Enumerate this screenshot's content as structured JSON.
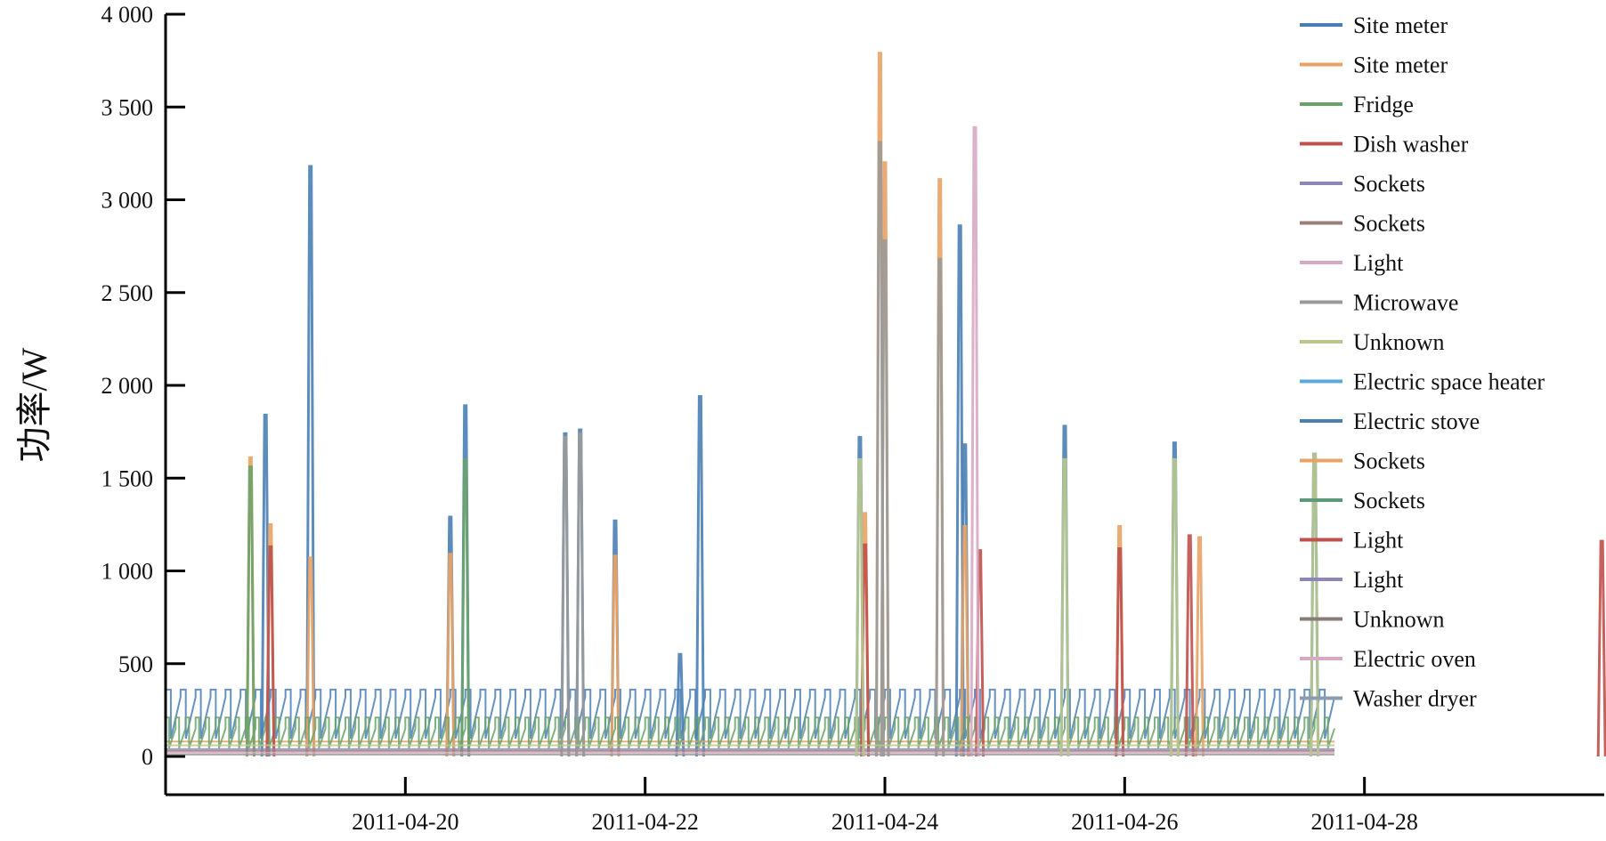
{
  "chart_data": {
    "type": "line",
    "title": "",
    "xlabel": "",
    "ylabel": "功率/W",
    "x_range": [
      "2011-04-18",
      "2011-04-30"
    ],
    "x_ticks": [
      "2011-04-20",
      "2011-04-22",
      "2011-04-24",
      "2011-04-26",
      "2011-04-28"
    ],
    "ylim": [
      0,
      4000
    ],
    "y_ticks": [
      0,
      500,
      1000,
      1500,
      2000,
      2500,
      3000,
      3500,
      4000
    ],
    "y_tick_labels": [
      "0",
      "500",
      "1 000",
      "1 500",
      "2 000",
      "2 500",
      "3 000",
      "3 500",
      "4 000"
    ],
    "grid": false,
    "legend_position": "top-right",
    "series": [
      {
        "name": "Site meter",
        "color": "#4a7fb5",
        "base": 320,
        "period_h": 3,
        "peaks": [
          [
            "2011-04-18T20:00",
            1840
          ],
          [
            "2011-04-19T05:00",
            3180
          ],
          [
            "2011-04-20T09:00",
            1290
          ],
          [
            "2011-04-20T12:00",
            1890
          ],
          [
            "2011-04-21T08:00",
            1740
          ],
          [
            "2011-04-21T11:00",
            1760
          ],
          [
            "2011-04-21T18:00",
            1270
          ],
          [
            "2011-04-22T07:00",
            550
          ],
          [
            "2011-04-22T11:00",
            1940
          ],
          [
            "2011-04-23T19:00",
            1720
          ],
          [
            "2011-04-24T16:00",
            1680
          ],
          [
            "2011-04-24T15:00",
            2860
          ],
          [
            "2011-04-25T12:00",
            1780
          ],
          [
            "2011-04-26T10:00",
            1690
          ],
          [
            "2011-04-27T14:00",
            1630
          ]
        ]
      },
      {
        "name": "Site meter",
        "color": "#e8a265",
        "base": 80,
        "period_h": 0,
        "peaks": [
          [
            "2011-04-18T17:00",
            1610
          ],
          [
            "2011-04-18T21:00",
            1250
          ],
          [
            "2011-04-19T05:00",
            1070
          ],
          [
            "2011-04-20T09:00",
            1090
          ],
          [
            "2011-04-21T18:00",
            1080
          ],
          [
            "2011-04-23T20:00",
            1310
          ],
          [
            "2011-04-23T23:00",
            3790
          ],
          [
            "2011-04-24T00:00",
            3200
          ],
          [
            "2011-04-24T11:00",
            3110
          ],
          [
            "2011-04-24T16:00",
            1240
          ],
          [
            "2011-04-25T23:00",
            1240
          ],
          [
            "2011-04-26T15:00",
            1180
          ]
        ]
      },
      {
        "name": "Fridge",
        "color": "#6aa36a",
        "base": 150,
        "period_h": 2,
        "peaks": [
          [
            "2011-04-18T17:00",
            1560
          ],
          [
            "2011-04-20T12:00",
            1600
          ]
        ]
      },
      {
        "name": "Dish washer",
        "color": "#c0504d",
        "base": 0,
        "period_h": 0,
        "peaks": [
          [
            "2011-04-18T21:00",
            1130
          ],
          [
            "2011-04-23T20:00",
            1140
          ],
          [
            "2011-04-24T19:00",
            1110
          ],
          [
            "2011-04-25T23:00",
            1120
          ],
          [
            "2011-04-26T13:00",
            1190
          ],
          [
            "2011-04-29T23:30",
            1160
          ]
        ]
      },
      {
        "name": "Sockets",
        "color": "#8e86b8",
        "base": 40,
        "period_h": 0,
        "peaks": []
      },
      {
        "name": "Sockets",
        "color": "#9a7f7a",
        "base": 30,
        "period_h": 0,
        "peaks": []
      },
      {
        "name": "Light",
        "color": "#d8a9c4",
        "base": 20,
        "period_h": 0,
        "peaks": [
          [
            "2011-04-24T18:00",
            3390
          ]
        ]
      },
      {
        "name": "Microwave",
        "color": "#9a9a9a",
        "base": 10,
        "period_h": 0,
        "peaks": [
          [
            "2011-04-23T23:00",
            3310
          ],
          [
            "2011-04-24T00:00",
            2780
          ],
          [
            "2011-04-24T11:00",
            2680
          ],
          [
            "2011-04-21T08:00",
            1720
          ],
          [
            "2011-04-21T11:00",
            1740
          ]
        ]
      },
      {
        "name": "Unknown",
        "color": "#b8c88c",
        "base": 60,
        "period_h": 0,
        "peaks": [
          [
            "2011-04-23T19:00",
            1600
          ],
          [
            "2011-04-25T12:00",
            1600
          ],
          [
            "2011-04-26T10:00",
            1600
          ],
          [
            "2011-04-27T14:00",
            1630
          ]
        ]
      },
      {
        "name": "Electric space heater",
        "color": "#5aaadc",
        "base": 0,
        "period_h": 0,
        "peaks": []
      },
      {
        "name": "Electric stove",
        "color": "#4a7fb5",
        "base": 0,
        "period_h": 0,
        "peaks": []
      },
      {
        "name": "Sockets",
        "color": "#e8a265",
        "base": 0,
        "period_h": 0,
        "peaks": []
      },
      {
        "name": "Sockets",
        "color": "#5e9a7a",
        "base": 0,
        "period_h": 0,
        "peaks": []
      },
      {
        "name": "Light",
        "color": "#c0504d",
        "base": 0,
        "period_h": 0,
        "peaks": []
      },
      {
        "name": "Light",
        "color": "#8e86b8",
        "base": 0,
        "period_h": 0,
        "peaks": []
      },
      {
        "name": "Unknown",
        "color": "#8a7a78",
        "base": 0,
        "period_h": 0,
        "peaks": []
      },
      {
        "name": "Electric oven",
        "color": "#d8a9c4",
        "base": 0,
        "period_h": 0,
        "peaks": []
      },
      {
        "name": "Washer dryer",
        "color": "#8c9cb0",
        "base": 0,
        "period_h": 0,
        "peaks": []
      }
    ]
  }
}
